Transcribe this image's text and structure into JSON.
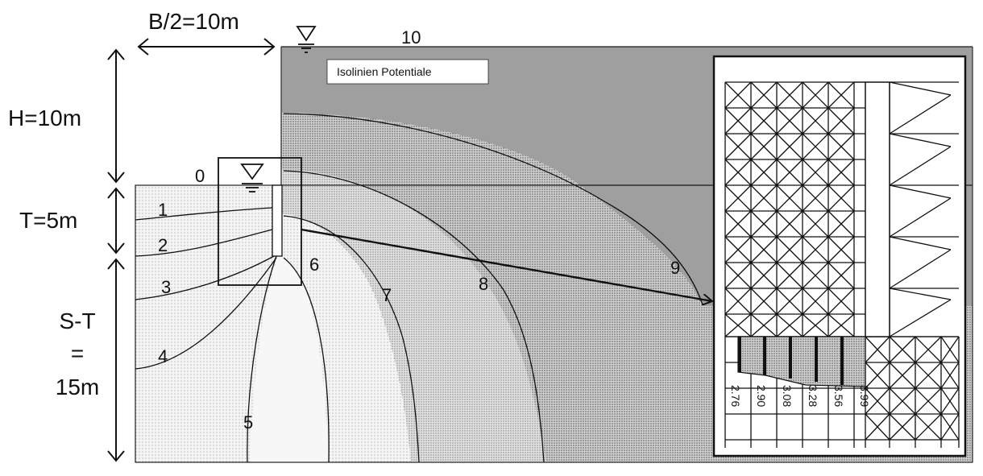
{
  "dimensions": {
    "half_width": "B/2=10m",
    "height": "H=10m",
    "t_depth": "T=5m",
    "s_minus_t_line1": "S-T",
    "s_minus_t_line2": "=",
    "s_minus_t_line3": "15m"
  },
  "legend": {
    "label": "Isolinien Potentiale"
  },
  "isoline_labels": [
    "0",
    "1",
    "2",
    "3",
    "4",
    "5",
    "6",
    "7",
    "8",
    "9",
    "10"
  ],
  "detail_values": [
    "2.76",
    "2.90",
    "3.08",
    "3.28",
    "3.56",
    "3.99"
  ]
}
